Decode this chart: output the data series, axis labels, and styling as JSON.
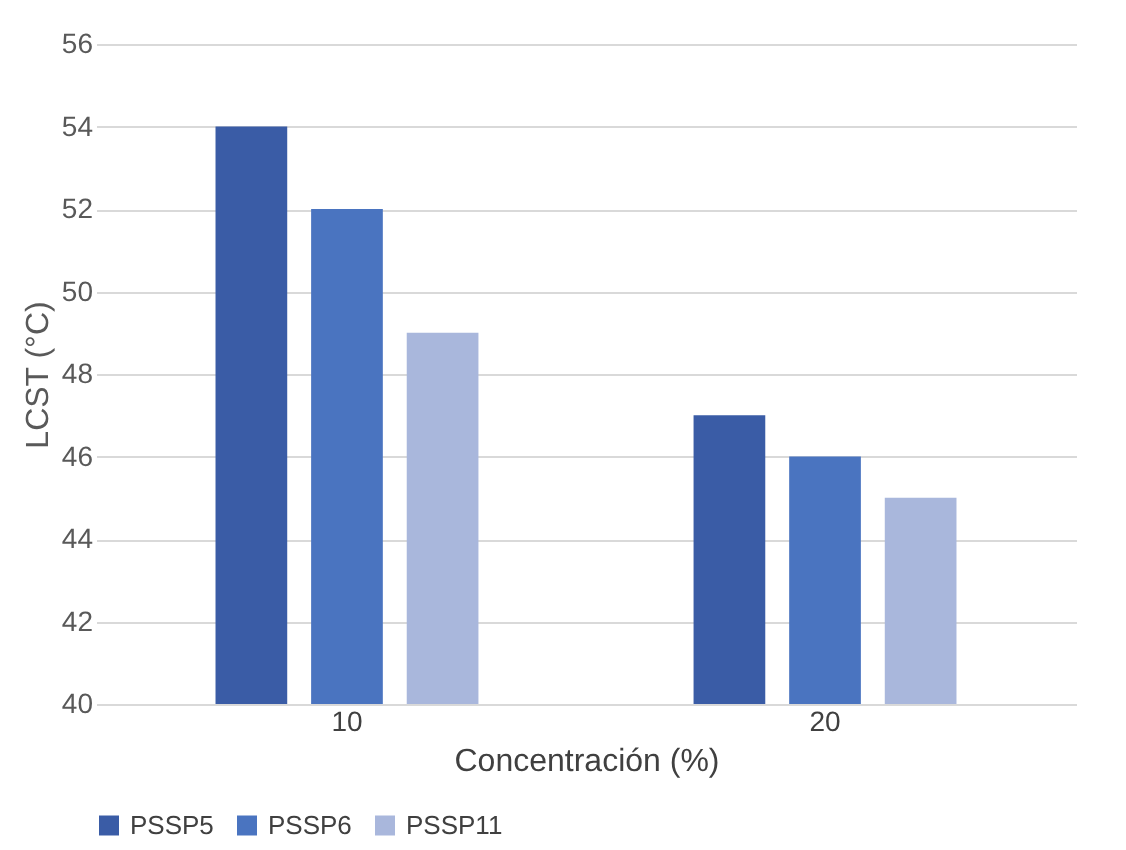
{
  "chart_data": {
    "type": "bar",
    "xlabel": "Concentración (%)",
    "ylabel": "LCST (°C)",
    "categories": [
      "10",
      "20"
    ],
    "series": [
      {
        "name": "PSSP5",
        "color": "#3a5ca6",
        "values": [
          54,
          47
        ]
      },
      {
        "name": "PSSP6",
        "color": "#4a74c0",
        "values": [
          52,
          46
        ]
      },
      {
        "name": "PSSP11",
        "color": "#a9b7dc",
        "values": [
          49,
          45
        ]
      }
    ],
    "ylim": [
      40,
      56
    ],
    "yticks": [
      40,
      42,
      44,
      46,
      48,
      50,
      52,
      54,
      56
    ],
    "grid": "y",
    "legend": "bottom"
  }
}
